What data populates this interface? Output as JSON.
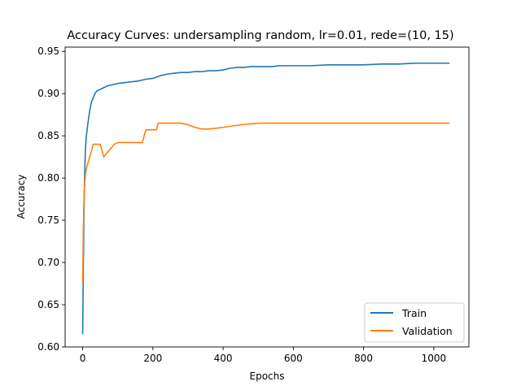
{
  "chart_data": {
    "type": "line",
    "title": "Accuracy Curves: undersampling random, lr=0.01, rede=(10, 15)",
    "xlabel": "Epochs",
    "ylabel": "Accuracy",
    "xlim": [
      -50,
      1100
    ],
    "ylim": [
      0.6,
      0.955
    ],
    "xticks": [
      0,
      200,
      400,
      600,
      800,
      1000
    ],
    "yticks": [
      0.6,
      0.65,
      0.7,
      0.75,
      0.8,
      0.85,
      0.9,
      0.95
    ],
    "ytick_labels": [
      "0.60",
      "0.65",
      "0.70",
      "0.75",
      "0.80",
      "0.85",
      "0.90",
      "0.95"
    ],
    "grid": false,
    "legend_position": "lower-right",
    "colors": {
      "train": "#1f77b4",
      "validation": "#ff7f0e"
    },
    "series": [
      {
        "name": "Train",
        "color": "#1f77b4",
        "x": [
          0,
          2,
          4,
          6,
          8,
          10,
          12,
          15,
          20,
          25,
          30,
          35,
          40,
          50,
          60,
          70,
          80,
          90,
          100,
          120,
          140,
          160,
          180,
          200,
          220,
          240,
          260,
          280,
          300,
          320,
          340,
          360,
          380,
          400,
          420,
          440,
          460,
          480,
          500,
          520,
          540,
          560,
          580,
          600,
          650,
          700,
          750,
          800,
          850,
          900,
          950,
          1000,
          1045
        ],
        "y": [
          0.615,
          0.7,
          0.77,
          0.81,
          0.835,
          0.848,
          0.855,
          0.865,
          0.88,
          0.89,
          0.895,
          0.9,
          0.903,
          0.905,
          0.907,
          0.909,
          0.91,
          0.911,
          0.912,
          0.913,
          0.914,
          0.915,
          0.917,
          0.918,
          0.921,
          0.923,
          0.924,
          0.925,
          0.925,
          0.926,
          0.926,
          0.927,
          0.927,
          0.928,
          0.93,
          0.931,
          0.931,
          0.932,
          0.932,
          0.932,
          0.932,
          0.933,
          0.933,
          0.933,
          0.933,
          0.934,
          0.934,
          0.934,
          0.935,
          0.935,
          0.936,
          0.936,
          0.936
        ]
      },
      {
        "name": "Validation",
        "color": "#ff7f0e",
        "x": [
          0,
          2,
          4,
          6,
          8,
          10,
          15,
          20,
          25,
          30,
          40,
          50,
          60,
          70,
          80,
          90,
          100,
          120,
          140,
          160,
          170,
          175,
          180,
          200,
          210,
          215,
          220,
          240,
          260,
          280,
          300,
          320,
          340,
          360,
          400,
          450,
          500,
          550,
          600,
          650,
          700,
          750,
          800,
          850,
          900,
          950,
          1000,
          1045
        ],
        "y": [
          0.675,
          0.74,
          0.78,
          0.795,
          0.805,
          0.81,
          0.818,
          0.825,
          0.832,
          0.84,
          0.84,
          0.84,
          0.825,
          0.83,
          0.835,
          0.84,
          0.842,
          0.842,
          0.842,
          0.842,
          0.842,
          0.85,
          0.857,
          0.857,
          0.857,
          0.865,
          0.865,
          0.865,
          0.865,
          0.865,
          0.863,
          0.86,
          0.858,
          0.858,
          0.86,
          0.863,
          0.865,
          0.865,
          0.865,
          0.865,
          0.865,
          0.865,
          0.865,
          0.865,
          0.865,
          0.865,
          0.865,
          0.865
        ]
      }
    ]
  }
}
